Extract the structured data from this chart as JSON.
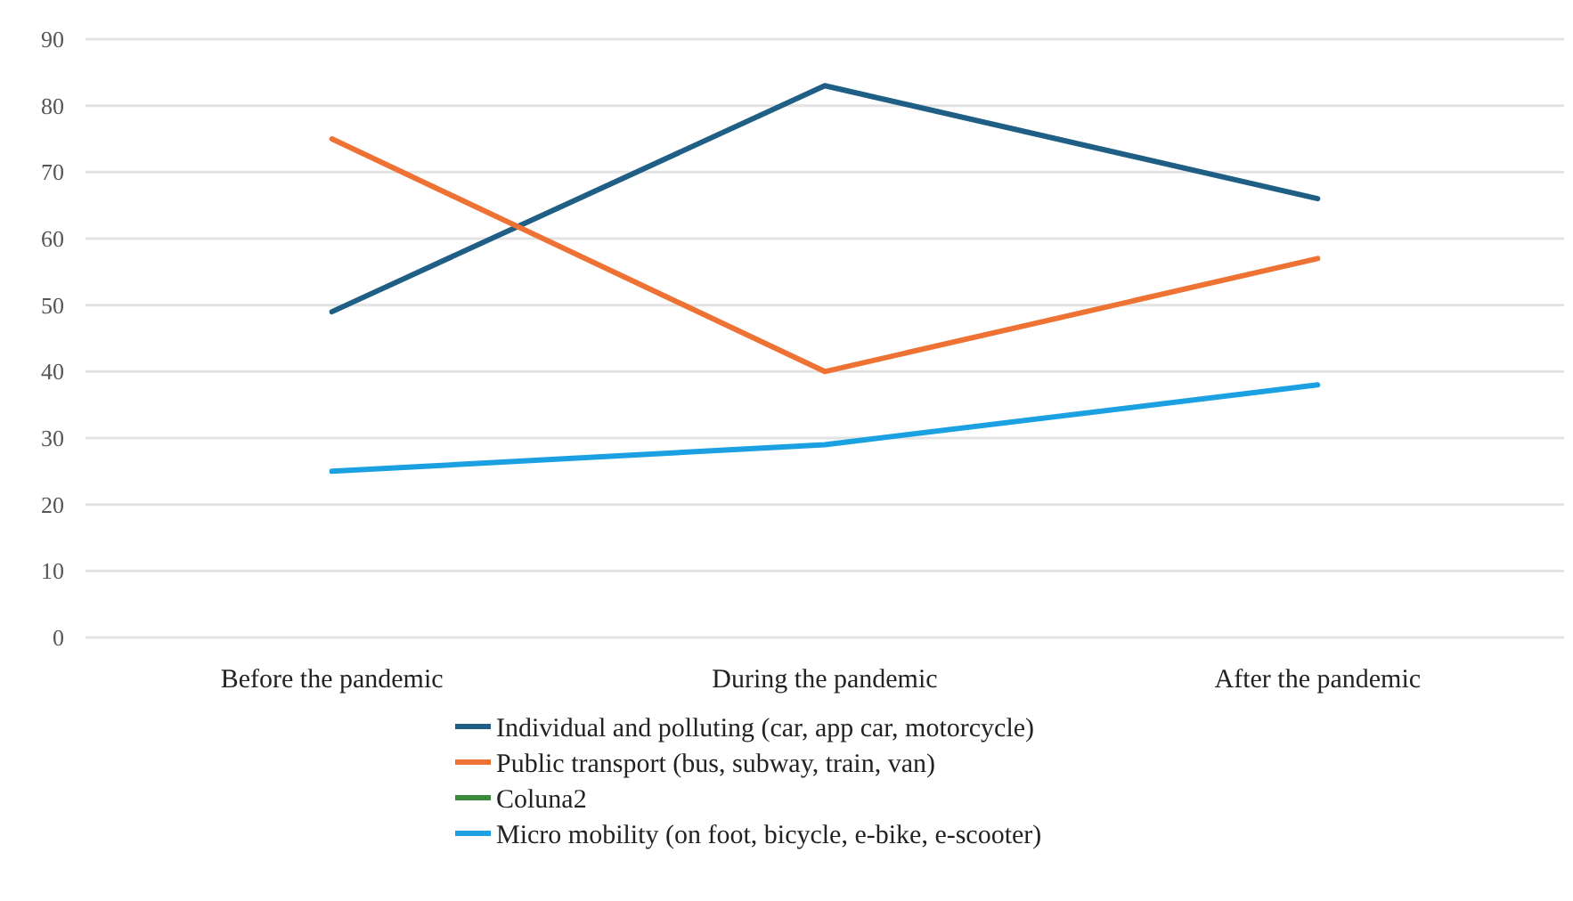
{
  "chart_data": {
    "type": "line",
    "categories": [
      "Before the pandemic",
      "During the pandemic",
      "After the pandemic"
    ],
    "series": [
      {
        "name": "Individual and polluting (car, app car, motorcycle)",
        "color": "#1f5f85",
        "values": [
          49,
          83,
          66
        ]
      },
      {
        "name": "Public transport (bus, subway, train, van)",
        "color": "#ed7233",
        "values": [
          75,
          40,
          57
        ]
      },
      {
        "name": "Coluna2",
        "color": "#3a8a3a",
        "values": [
          null,
          null,
          null
        ]
      },
      {
        "name": "Micro mobility (on foot, bicycle, e-bike, e-scooter)",
        "color": "#1ba1e2",
        "values": [
          25,
          29,
          38
        ]
      }
    ],
    "ylim": [
      0,
      90
    ],
    "yticks": [
      0,
      10,
      20,
      30,
      40,
      50,
      60,
      70,
      80,
      90
    ],
    "grid": "y",
    "legend": "bottom",
    "marker": "none",
    "line_style": "solid"
  }
}
